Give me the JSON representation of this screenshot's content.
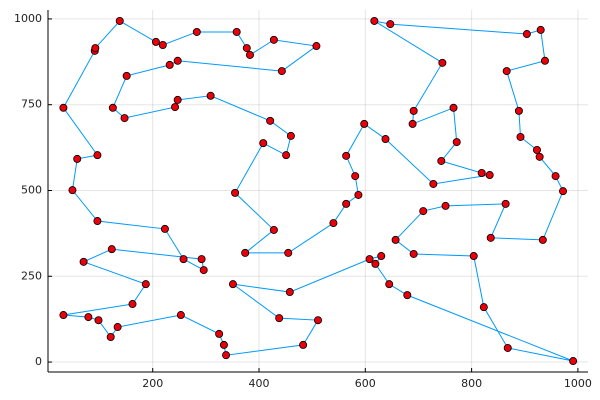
{
  "chart_data": {
    "type": "line",
    "closed": true,
    "grid": true,
    "xlim": [
      3,
      1019
    ],
    "ylim": [
      -29,
      1026
    ],
    "xticks": [
      200,
      400,
      600,
      800,
      1000
    ],
    "yticks": [
      0,
      250,
      500,
      750,
      1000
    ],
    "line_color": "#009af9",
    "marker_color": "#e8000b",
    "x": [
      32,
      91,
      92,
      138,
      206,
      219,
      283,
      358,
      377,
      383,
      428,
      508,
      443,
      247,
      232,
      151,
      125,
      147,
      242,
      247,
      309,
      421,
      460,
      451,
      408,
      355,
      428,
      374,
      455,
      540,
      564,
      587,
      581,
      564,
      598,
      638,
      728,
      834,
      819,
      743,
      772,
      766,
      689,
      691,
      745,
      617,
      647,
      904,
      930,
      938,
      866,
      889,
      892,
      923,
      928,
      958,
      972,
      934,
      836,
      864,
      751,
      709,
      657,
      691,
      804,
      823,
      868,
      991,
      679,
      645,
      619,
      630,
      608,
      458,
      351,
      438,
      511,
      483,
      338,
      334,
      325,
      253,
      134,
      121,
      98,
      79,
      32,
      162,
      187,
      70,
      123,
      292,
      296,
      258,
      223,
      96,
      49,
      58,
      96
    ],
    "y": [
      741,
      907,
      915,
      994,
      933,
      924,
      962,
      962,
      915,
      895,
      939,
      921,
      848,
      878,
      866,
      834,
      741,
      711,
      743,
      764,
      776,
      703,
      659,
      603,
      638,
      493,
      385,
      318,
      318,
      405,
      461,
      487,
      542,
      601,
      694,
      650,
      519,
      545,
      551,
      586,
      641,
      741,
      694,
      732,
      872,
      994,
      985,
      956,
      968,
      878,
      848,
      732,
      656,
      618,
      598,
      542,
      498,
      356,
      362,
      461,
      455,
      440,
      356,
      315,
      309,
      160,
      41,
      3,
      195,
      227,
      286,
      309,
      300,
      204,
      227,
      128,
      122,
      50,
      20,
      50,
      82,
      137,
      102,
      73,
      122,
      131,
      137,
      169,
      227,
      292,
      329,
      300,
      268,
      300,
      388,
      411,
      501,
      592,
      603
    ]
  }
}
